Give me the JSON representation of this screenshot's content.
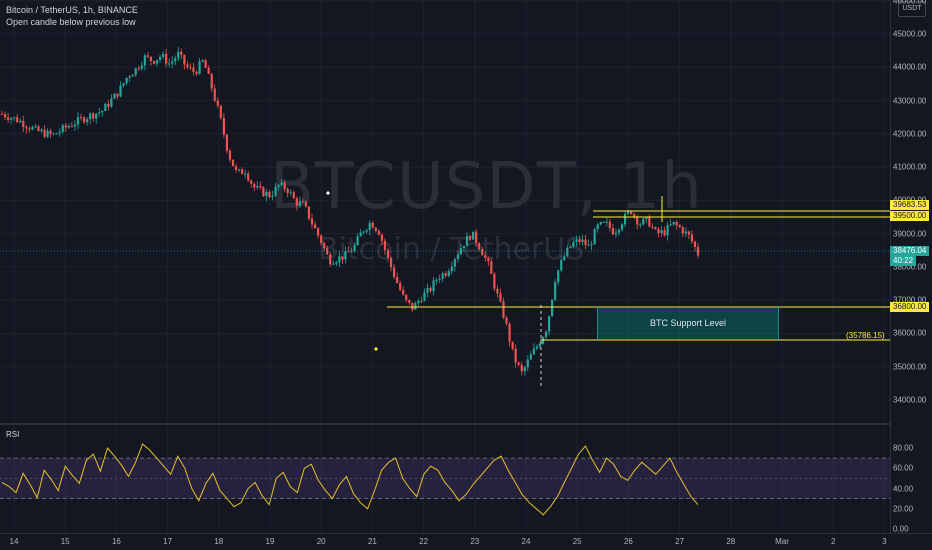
{
  "header": {
    "symbol_line": "Bitcoin / TetherUS, 1h, BINANCE",
    "indicator_line": "Open candle below previous low"
  },
  "watermark": {
    "ticker": "BTCUSDT, 1h",
    "name": "Bitcoin / TetherUS"
  },
  "axis": {
    "unit": "USDT",
    "price_ticks": [
      "46000.00",
      "45000.00",
      "44000.00",
      "43000.00",
      "42000.00",
      "41000.00",
      "40000.00",
      "39000.00",
      "38000.00",
      "37000.00",
      "36000.00",
      "35000.00",
      "34000.00"
    ],
    "rsi_ticks": [
      "80.00",
      "60.00",
      "40.00",
      "20.00",
      "0.00"
    ],
    "date_ticks": [
      "14",
      "15",
      "16",
      "17",
      "18",
      "19",
      "20",
      "21",
      "22",
      "23",
      "24",
      "25",
      "26",
      "27",
      "28",
      "Mar",
      "2",
      "3"
    ]
  },
  "price_tags": [
    {
      "text": "39683.53",
      "kind": "yellow"
    },
    {
      "text": "39500.00",
      "kind": "yellow"
    },
    {
      "text": "38476.04",
      "kind": "green"
    },
    {
      "text": "40:22",
      "kind": "green"
    },
    {
      "text": "36800.00",
      "kind": "yellow"
    }
  ],
  "drawings": {
    "support_label": "BTC Support Level",
    "low_annotation": "(35786.15)"
  },
  "indicator": {
    "name": "RSI"
  },
  "colors": {
    "up": "#26a69a",
    "down": "#ef5350",
    "drawing": "#ffeb3b",
    "rsi_line": "#e6c229",
    "background": "#131722"
  },
  "chart_data": {
    "type": "candlestick",
    "symbol": "BTCUSDT",
    "timeframe": "1h",
    "exchange": "BINANCE",
    "price_ylim": [
      34000,
      46000
    ],
    "last_price": 38476.04,
    "countdown": "40:22",
    "levels": [
      39683.53,
      39500.0,
      36800.0,
      35786.15
    ],
    "support_zone": {
      "label": "BTC Support Level",
      "low": 35786.15,
      "high": 36800.0
    },
    "price_path": [
      [
        0,
        42600
      ],
      [
        2,
        42400
      ],
      [
        4,
        42100
      ],
      [
        6,
        41950
      ],
      [
        8,
        42250
      ],
      [
        10,
        42500
      ],
      [
        12,
        42700
      ],
      [
        14,
        43300
      ],
      [
        15,
        43750
      ],
      [
        16,
        43950
      ],
      [
        17,
        44300
      ],
      [
        18,
        44200
      ],
      [
        19,
        44350
      ],
      [
        20,
        44100
      ],
      [
        21,
        44400
      ],
      [
        22,
        44000
      ],
      [
        23,
        43850
      ],
      [
        24,
        44200
      ],
      [
        25,
        43400
      ],
      [
        26,
        42500
      ],
      [
        27,
        41400
      ],
      [
        28,
        40800
      ],
      [
        29,
        40900
      ],
      [
        30,
        40400
      ],
      [
        31,
        40250
      ],
      [
        32,
        40150
      ],
      [
        33,
        40450
      ],
      [
        34,
        40350
      ],
      [
        35,
        39950
      ],
      [
        36,
        39850
      ],
      [
        37,
        39300
      ],
      [
        38,
        38800
      ],
      [
        39,
        38200
      ],
      [
        40,
        38250
      ],
      [
        41,
        38350
      ],
      [
        42,
        38600
      ],
      [
        43,
        39100
      ],
      [
        44,
        39350
      ],
      [
        45,
        39050
      ],
      [
        46,
        38250
      ],
      [
        47,
        37600
      ],
      [
        48,
        37000
      ],
      [
        49,
        36750
      ],
      [
        50,
        37100
      ],
      [
        51,
        37300
      ],
      [
        52,
        37700
      ],
      [
        53,
        37850
      ],
      [
        54,
        38300
      ],
      [
        55,
        38700
      ],
      [
        56,
        39000
      ],
      [
        57,
        38600
      ],
      [
        58,
        38050
      ],
      [
        59,
        37200
      ],
      [
        60,
        36400
      ],
      [
        61,
        35300
      ],
      [
        62,
        34800
      ],
      [
        63,
        35300
      ],
      [
        64,
        35700
      ],
      [
        65,
        36200
      ],
      [
        66,
        37700
      ],
      [
        67,
        38300
      ],
      [
        68,
        38700
      ],
      [
        69,
        38800
      ],
      [
        70,
        38600
      ],
      [
        71,
        39200
      ],
      [
        72,
        39300
      ],
      [
        73,
        39050
      ],
      [
        74,
        39400
      ],
      [
        75,
        39700
      ],
      [
        76,
        39300
      ],
      [
        77,
        39400
      ],
      [
        78,
        39000
      ],
      [
        79,
        39050
      ],
      [
        80,
        39300
      ],
      [
        81,
        39150
      ],
      [
        82,
        38900
      ],
      [
        83,
        38400
      ]
    ],
    "rsi_ylim": [
      0,
      90
    ],
    "rsi_bands": {
      "upper": 70,
      "middle": 50,
      "lower": 30
    },
    "rsi": [
      46,
      42,
      36,
      55,
      44,
      31,
      58,
      49,
      38,
      62,
      53,
      45,
      68,
      74,
      57,
      80,
      72,
      63,
      52,
      66,
      84,
      78,
      70,
      62,
      54,
      72,
      60,
      40,
      28,
      45,
      55,
      38,
      30,
      22,
      26,
      40,
      46,
      33,
      24,
      50,
      56,
      42,
      36,
      60,
      64,
      48,
      38,
      30,
      44,
      52,
      35,
      26,
      20,
      38,
      58,
      66,
      70,
      50,
      40,
      32,
      54,
      62,
      58,
      46,
      38,
      28,
      34,
      44,
      52,
      60,
      68,
      72,
      58,
      46,
      34,
      26,
      20,
      14,
      22,
      32,
      46,
      60,
      74,
      82,
      68,
      56,
      70,
      64,
      52,
      48,
      58,
      66,
      60,
      54,
      62,
      70,
      56,
      44,
      32,
      24
    ]
  }
}
